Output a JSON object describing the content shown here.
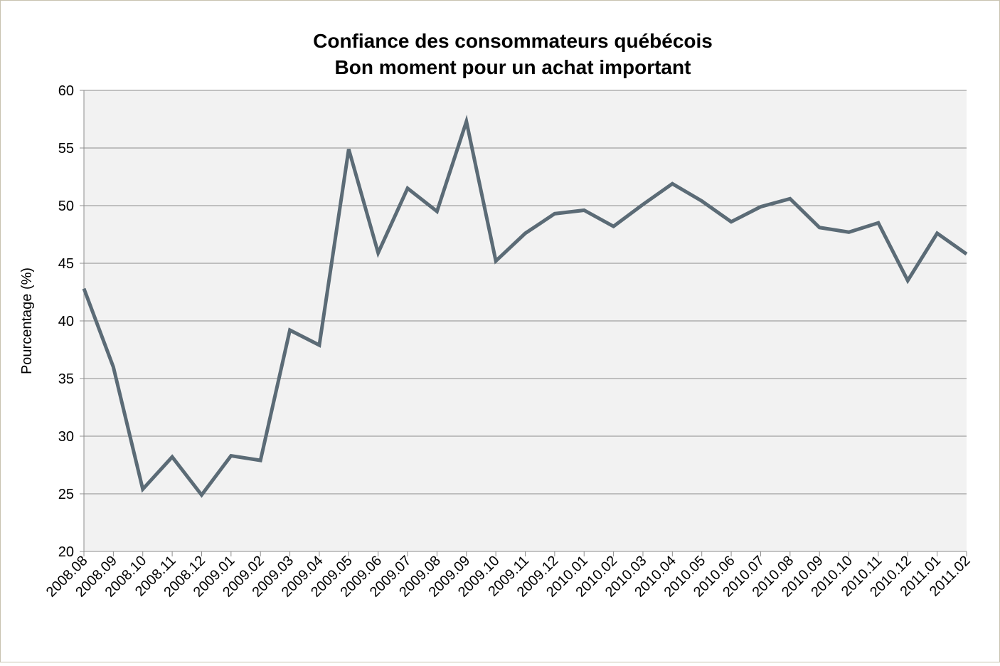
{
  "chart_data": {
    "type": "line",
    "title": "Confiance des consommateurs québécois",
    "subtitle": "Bon moment pour un achat important",
    "y_label": "Pourcentage (%)",
    "categories": [
      "2008.08",
      "2008.09",
      "2008.10",
      "2008.11",
      "2008.12",
      "2009.01",
      "2009.02",
      "2009.03",
      "2009.04",
      "2009.05",
      "2009.06",
      "2009.07",
      "2009.08",
      "2009.09",
      "2009.10",
      "2009.11",
      "2009.12",
      "2010.01",
      "2010.02",
      "2010.03",
      "2010.04",
      "2010.05",
      "2010.06",
      "2010.07",
      "2010.08",
      "2010.09",
      "2010.10",
      "2010.11",
      "2010.12",
      "2011.01",
      "2011.02"
    ],
    "values": [
      42.8,
      36.0,
      25.4,
      28.2,
      24.9,
      28.3,
      27.9,
      39.2,
      37.9,
      54.9,
      45.9,
      51.5,
      49.5,
      57.3,
      45.2,
      47.6,
      49.3,
      49.6,
      48.2,
      50.1,
      51.9,
      50.4,
      48.6,
      49.9,
      50.6,
      48.1,
      47.7,
      48.5,
      43.5,
      47.6,
      45.8
    ],
    "color": "#5b6b76",
    "ylim": [
      20,
      60
    ],
    "yticks": [
      20,
      25,
      30,
      35,
      40,
      45,
      50,
      55,
      60
    ],
    "grid": true
  }
}
